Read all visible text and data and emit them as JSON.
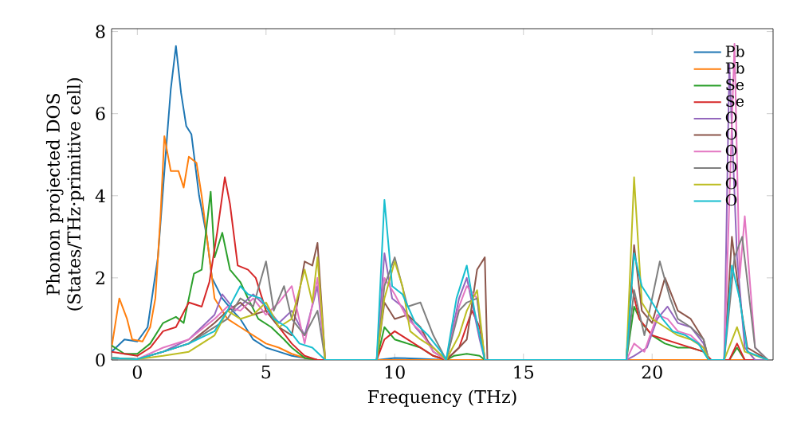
{
  "chart_data": {
    "type": "line",
    "xlabel": "Frequency (THz)",
    "ylabel": "Phonon projected DOS (States/THz·primitive cell)",
    "xlim": [
      -1,
      24.7
    ],
    "ylim": [
      0,
      8.07
    ],
    "xticks": [
      0,
      5,
      10,
      15,
      20
    ],
    "yticks": [
      0,
      2,
      4,
      6,
      8
    ],
    "legend": "top right",
    "line_style": "solid",
    "series": [
      {
        "name": "Pb",
        "color": "#1f77b4",
        "x": [
          -1,
          -0.5,
          0,
          0.4,
          0.8,
          1.1,
          1.3,
          1.5,
          1.7,
          1.9,
          2.1,
          2.4,
          2.7,
          2.9,
          3.3,
          3.7,
          4,
          4.5,
          5,
          5.5,
          6,
          6.5,
          7,
          9.3,
          10,
          11,
          12,
          13.5,
          19,
          22,
          23.5,
          24.5
        ],
        "values": [
          0.2,
          0.5,
          0.45,
          0.8,
          2.5,
          5.0,
          6.6,
          7.65,
          6.5,
          5.7,
          5.5,
          4.0,
          3.0,
          2.0,
          1.5,
          1.2,
          1.0,
          0.5,
          0.3,
          0.2,
          0.1,
          0.05,
          0,
          0,
          0.05,
          0.03,
          0,
          0,
          0,
          0,
          0,
          0
        ]
      },
      {
        "name": "Pb",
        "color": "#ff7f0e",
        "x": [
          -1,
          -0.7,
          -0.4,
          -0.2,
          0.2,
          0.5,
          0.7,
          0.9,
          1.05,
          1.3,
          1.6,
          1.8,
          2.0,
          2.3,
          2.5,
          2.7,
          3.0,
          3.5,
          4,
          4.5,
          5,
          5.5,
          6,
          6.5,
          7,
          9.3,
          12,
          13.5,
          19,
          22,
          23.5,
          24.5
        ],
        "values": [
          0.3,
          1.5,
          1.0,
          0.5,
          0.45,
          0.8,
          1.5,
          3.5,
          5.45,
          4.6,
          4.6,
          4.2,
          4.95,
          4.8,
          4.0,
          3.0,
          1.5,
          1.0,
          0.8,
          0.6,
          0.4,
          0.3,
          0.15,
          0.05,
          0,
          0,
          0,
          0,
          0,
          0,
          0,
          0
        ]
      },
      {
        "name": "Se",
        "color": "#2ca02c",
        "x": [
          -1,
          -0.5,
          0,
          0.5,
          1,
          1.5,
          1.8,
          2.2,
          2.5,
          2.7,
          2.85,
          3.0,
          3.3,
          3.6,
          4,
          4.3,
          4.7,
          5.2,
          5.7,
          6,
          6.5,
          7,
          9.3,
          9.6,
          10,
          10.5,
          11,
          11.5,
          12,
          12.3,
          12.8,
          13.3,
          13.5,
          19,
          19.3,
          19.6,
          20,
          20.5,
          21,
          21.5,
          22,
          22.2,
          23,
          23.3,
          23.6,
          24.5
        ],
        "values": [
          0.35,
          0.15,
          0.15,
          0.4,
          0.9,
          1.05,
          0.9,
          2.1,
          2.2,
          3.3,
          4.1,
          2.5,
          3.1,
          2.2,
          1.9,
          1.5,
          1.0,
          0.8,
          0.5,
          0.3,
          0.05,
          0,
          0,
          0.8,
          0.5,
          0.4,
          0.3,
          0.1,
          0,
          0.1,
          0.15,
          0.1,
          0,
          0,
          1.3,
          0.9,
          0.6,
          0.4,
          0.3,
          0.3,
          0.2,
          0,
          0,
          0.3,
          0,
          0
        ]
      },
      {
        "name": "Se",
        "color": "#d62728",
        "x": [
          -1,
          0,
          0.5,
          1,
          1.5,
          2,
          2.5,
          2.8,
          3.1,
          3.4,
          3.6,
          3.9,
          4.3,
          4.6,
          5,
          5.5,
          6,
          6.5,
          7,
          9.3,
          9.6,
          10,
          10.5,
          11,
          11.5,
          12,
          12.5,
          13,
          13.3,
          13.5,
          19,
          19.2,
          19.5,
          20,
          20.5,
          21,
          21.5,
          22,
          22.3,
          23,
          23.3,
          23.6,
          24.5
        ],
        "values": [
          0.2,
          0.1,
          0.3,
          0.7,
          0.8,
          1.4,
          1.3,
          1.9,
          3.1,
          4.45,
          3.8,
          2.3,
          2.2,
          2.0,
          1.2,
          0.8,
          0.4,
          0.1,
          0,
          0,
          0.5,
          0.7,
          0.5,
          0.3,
          0.1,
          0,
          0.3,
          1.2,
          0.8,
          0,
          0,
          1.8,
          1.0,
          0.6,
          0.5,
          0.4,
          0.3,
          0.2,
          0,
          0,
          0.4,
          0,
          0
        ]
      },
      {
        "name": "O",
        "color": "#9467bd",
        "x": [
          -1,
          0,
          1,
          2,
          3,
          3.3,
          3.8,
          4.5,
          5,
          5.5,
          6,
          6.5,
          7,
          7.3,
          9.3,
          9.6,
          9.9,
          10.3,
          10.8,
          11.5,
          12,
          12.5,
          12.8,
          13.3,
          13.5,
          19,
          19.3,
          19.8,
          20.2,
          20.6,
          21,
          21.5,
          22,
          22.2,
          22.8,
          23.0,
          23.3,
          23.6,
          24,
          24.5
        ],
        "values": [
          0.05,
          0.02,
          0.2,
          0.5,
          1.1,
          1.6,
          1.2,
          1.6,
          1.3,
          0.9,
          1.2,
          0.6,
          1.8,
          0,
          0,
          2.6,
          1.5,
          1.3,
          0.8,
          0.3,
          0,
          1.5,
          2.0,
          0.5,
          0,
          0,
          0.1,
          0.3,
          1.0,
          1.3,
          0.9,
          0.8,
          0.4,
          0,
          0,
          7.2,
          2.5,
          0.3,
          0,
          0
        ]
      },
      {
        "name": "O",
        "color": "#8c564b",
        "x": [
          -1,
          0,
          1,
          2,
          3,
          3.5,
          4,
          4.5,
          5,
          5.5,
          6,
          6.5,
          6.8,
          7,
          7.3,
          9.3,
          9.6,
          10,
          10.5,
          11,
          11.5,
          12,
          12.5,
          12.8,
          13.2,
          13.5,
          13.6,
          19,
          19.3,
          19.6,
          20,
          20.5,
          21,
          21.5,
          22,
          22.2,
          22.8,
          23.1,
          23.4,
          23.7,
          24.5
        ],
        "values": [
          0.05,
          0.02,
          0.2,
          0.4,
          0.9,
          1.2,
          1.4,
          1.1,
          1.2,
          0.8,
          0.6,
          2.4,
          2.3,
          2.85,
          0,
          0,
          1.4,
          1.0,
          1.1,
          0.8,
          0.2,
          0,
          0.3,
          0.5,
          2.2,
          2.5,
          0,
          0,
          2.8,
          1.2,
          0.9,
          2.0,
          1.2,
          1.0,
          0.5,
          0,
          0,
          3.0,
          1.5,
          0.3,
          0
        ]
      },
      {
        "name": "O",
        "color": "#e377c2",
        "x": [
          -1,
          0,
          1,
          2,
          3,
          3.5,
          4,
          4.5,
          5,
          5.5,
          6,
          6.5,
          7,
          7.3,
          9.3,
          9.6,
          10,
          10.5,
          11,
          11.5,
          12,
          12.5,
          12.8,
          13.2,
          13.5,
          19,
          19.3,
          19.7,
          20.2,
          20.6,
          21,
          21.5,
          22,
          22.2,
          22.8,
          23.2,
          23.4,
          23.6,
          24,
          24.5
        ],
        "values": [
          0.05,
          0.02,
          0.3,
          0.5,
          1.0,
          1.3,
          1.2,
          1.5,
          1.1,
          1.4,
          1.8,
          0.4,
          2.0,
          0,
          0,
          2.0,
          1.6,
          1.0,
          0.7,
          0.2,
          0,
          1.3,
          1.8,
          1.5,
          0,
          0,
          0.4,
          0.2,
          1.1,
          1.0,
          0.7,
          0.6,
          0.3,
          0,
          0,
          7.7,
          2.0,
          3.5,
          0.3,
          0
        ]
      },
      {
        "name": "O",
        "color": "#7f7f7f",
        "x": [
          -1,
          0,
          1,
          2,
          3,
          3.5,
          4,
          4.5,
          5,
          5.3,
          5.7,
          6,
          6.5,
          7,
          7.3,
          9.3,
          9.6,
          10,
          10.5,
          11,
          11.5,
          12,
          12.5,
          12.8,
          13.2,
          13.5,
          19,
          19.3,
          19.7,
          20.3,
          20.7,
          21,
          21.5,
          22,
          22.2,
          22.8,
          23.2,
          23.5,
          24,
          24.5
        ],
        "values": [
          0.05,
          0.02,
          0.2,
          0.4,
          0.8,
          1.0,
          1.5,
          1.3,
          2.4,
          1.2,
          1.8,
          1.0,
          0.6,
          1.2,
          0,
          0,
          1.8,
          2.5,
          1.3,
          1.4,
          0.6,
          0,
          1.2,
          1.4,
          1.5,
          0,
          0,
          1.7,
          0.6,
          2.4,
          1.5,
          1.0,
          0.8,
          0.5,
          0,
          0,
          2.5,
          3.0,
          0.3,
          0
        ]
      },
      {
        "name": "O",
        "color": "#bcbd22",
        "x": [
          -1,
          0,
          1,
          2,
          3,
          3.5,
          4,
          4.5,
          5,
          5.5,
          6,
          6.5,
          6.8,
          7,
          7.3,
          9.3,
          9.6,
          10,
          10.3,
          10.6,
          11,
          11.5,
          12,
          12.5,
          12.8,
          13.2,
          13.5,
          19,
          19.3,
          19.6,
          20,
          20.5,
          21,
          21.5,
          22,
          22.2,
          22.8,
          23.3,
          23.6,
          24.5
        ],
        "values": [
          0.05,
          0.02,
          0.1,
          0.2,
          0.6,
          1.2,
          1.0,
          1.1,
          1.4,
          0.8,
          1.0,
          2.2,
          1.4,
          2.5,
          0,
          0,
          1.5,
          2.4,
          1.8,
          0.7,
          0.5,
          0.3,
          0,
          0.6,
          1.2,
          1.7,
          0,
          0,
          4.45,
          1.4,
          1.0,
          0.8,
          0.6,
          0.5,
          0.3,
          0,
          0,
          0.8,
          0.2,
          0
        ]
      },
      {
        "name": "O",
        "color": "#17becf",
        "x": [
          -1,
          0,
          1,
          2,
          3,
          3.5,
          4,
          4.3,
          4.8,
          5.3,
          5.8,
          6.3,
          6.8,
          7.3,
          9.3,
          9.6,
          9.9,
          10.3,
          10.8,
          11.3,
          11.8,
          12,
          12.4,
          12.8,
          13.1,
          13.5,
          19,
          19.3,
          19.6,
          20,
          20.4,
          20.8,
          21.3,
          21.8,
          22.2,
          22.8,
          23.1,
          23.4,
          23.7,
          24.5
        ],
        "values": [
          0.05,
          0.02,
          0.2,
          0.4,
          0.7,
          1.2,
          1.8,
          1.6,
          1.5,
          1.0,
          0.8,
          0.4,
          0.3,
          0,
          0,
          3.9,
          1.8,
          1.6,
          0.9,
          0.6,
          0.2,
          0,
          1.5,
          2.3,
          1.2,
          0,
          0,
          2.6,
          1.8,
          1.4,
          1.0,
          0.7,
          0.6,
          0.4,
          0,
          0,
          2.3,
          1.5,
          0.2,
          0
        ]
      }
    ]
  }
}
